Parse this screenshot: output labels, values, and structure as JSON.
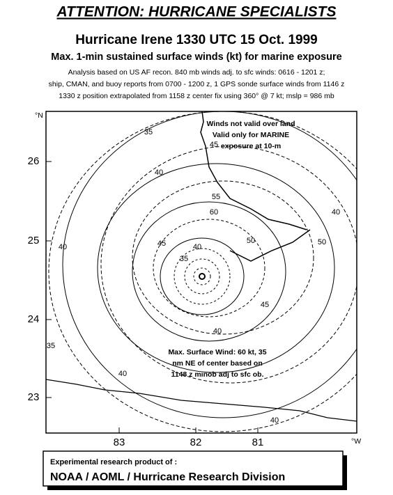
{
  "header": {
    "banner": "ATTENTION: HURRICANE SPECIALISTS",
    "title": "Hurricane Irene 1330 UTC 15 Oct. 1999",
    "subtitle": "Max. 1-min sustained surface winds (kt) for marine exposure",
    "notes": [
      "Analysis based on US AF recon. 840 mb winds adj. to sfc winds: 0616 - 1201 z;",
      "ship, CMAN, and buoy reports from 0700 - 1200 z, 1 GPS sonde surface winds from 1146 z",
      "1330 z position extrapolated from 1158 z center fix using  360° @ 7 kt; mslp = 986 mb"
    ]
  },
  "map": {
    "lat_unit": "°N",
    "lon_unit": "°W",
    "lat_labels": [
      "26",
      "25",
      "24",
      "23"
    ],
    "lon_labels": [
      "83",
      "82",
      "81"
    ],
    "land_note": [
      "Winds not valid over land",
      "Valid only for MARINE",
      "exposure at 10-m"
    ],
    "max_wind_note": [
      "Max. Surface Wind: 60 kt, 35",
      "nm NE of center based on",
      "1148 z minob adj to sfc ob."
    ],
    "contour_labels": [
      "35",
      "40",
      "45",
      "55",
      "60",
      "50",
      "45",
      "40",
      "35",
      "50",
      "45",
      "40",
      "40",
      "35",
      "40",
      "40",
      "40"
    ]
  },
  "footer": {
    "line1": "Experimental research product of :",
    "line2": "NOAA / AOML / Hurricane Research Division"
  }
}
